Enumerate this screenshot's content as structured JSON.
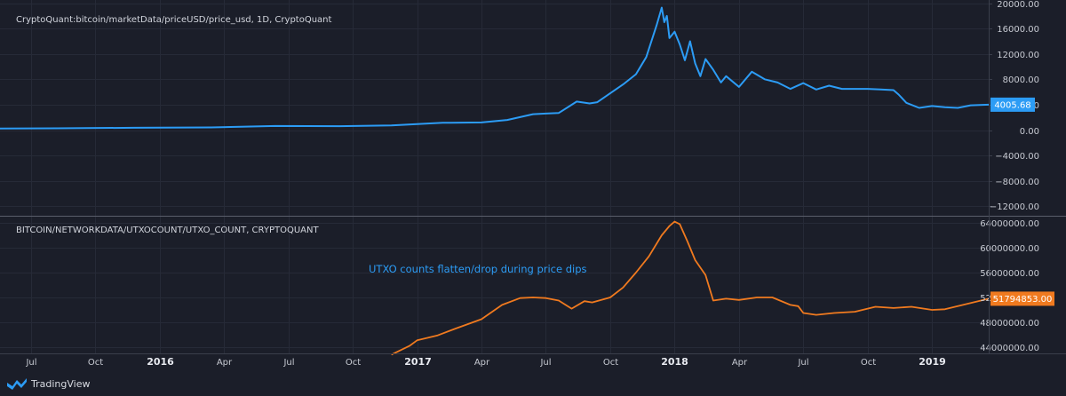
{
  "colors": {
    "background": "#1b1e29",
    "grid": "#262a37",
    "price_line": "#2c9cf5",
    "utxo_line": "#f07a1f",
    "separator": "#5a5e6b"
  },
  "brand": {
    "name": "TradingView",
    "icon": "tradingview-logo-icon"
  },
  "x_axis": {
    "ticks": [
      {
        "label": "Jul",
        "t": 2015.5,
        "bold": false
      },
      {
        "label": "Oct",
        "t": 2015.75,
        "bold": false
      },
      {
        "label": "2016",
        "t": 2016.0,
        "bold": true
      },
      {
        "label": "Apr",
        "t": 2016.25,
        "bold": false
      },
      {
        "label": "Jul",
        "t": 2016.5,
        "bold": false
      },
      {
        "label": "Oct",
        "t": 2016.75,
        "bold": false
      },
      {
        "label": "2017",
        "t": 2017.0,
        "bold": true
      },
      {
        "label": "Apr",
        "t": 2017.25,
        "bold": false
      },
      {
        "label": "Jul",
        "t": 2017.5,
        "bold": false
      },
      {
        "label": "Oct",
        "t": 2017.75,
        "bold": false
      },
      {
        "label": "2018",
        "t": 2018.0,
        "bold": true
      },
      {
        "label": "Apr",
        "t": 2018.25,
        "bold": false
      },
      {
        "label": "Jul",
        "t": 2018.5,
        "bold": false
      },
      {
        "label": "Oct",
        "t": 2018.75,
        "bold": false
      },
      {
        "label": "2019",
        "t": 2019.0,
        "bold": true
      }
    ],
    "range": [
      2015.38,
      2019.22
    ]
  },
  "chart_data": [
    {
      "type": "line",
      "title": "CryptoQuant:bitcoin/marketData/priceUSD/price_usd, 1D, CryptoQuant",
      "xlabel": "",
      "ylabel": "",
      "ylim": [
        -13500,
        20500
      ],
      "yticks": [
        "20000.00",
        "16000.00",
        "12000.00",
        "8000.00",
        "4000.00",
        "0.00",
        "−4000.00",
        "−8000.00",
        "−12000.00"
      ],
      "ytick_values": [
        20000,
        16000,
        12000,
        8000,
        4000,
        0,
        -4000,
        -8000,
        -12000
      ],
      "last_value_label": "4005.68",
      "last_value": 4005.68,
      "series": [
        {
          "name": "price_usd",
          "x": [
            2015.38,
            2015.6,
            2015.9,
            2016.2,
            2016.45,
            2016.7,
            2016.9,
            2017.0,
            2017.1,
            2017.25,
            2017.35,
            2017.45,
            2017.5,
            2017.55,
            2017.62,
            2017.67,
            2017.7,
            2017.75,
            2017.8,
            2017.85,
            2017.89,
            2017.93,
            2017.95,
            2017.96,
            2017.97,
            2017.98,
            2018.0,
            2018.02,
            2018.04,
            2018.06,
            2018.08,
            2018.1,
            2018.12,
            2018.15,
            2018.18,
            2018.2,
            2018.25,
            2018.3,
            2018.35,
            2018.4,
            2018.45,
            2018.5,
            2018.55,
            2018.6,
            2018.65,
            2018.7,
            2018.75,
            2018.8,
            2018.85,
            2018.87,
            2018.9,
            2018.95,
            2019.0,
            2019.05,
            2019.1,
            2019.15,
            2019.22
          ],
          "values": [
            240,
            280,
            360,
            420,
            650,
            620,
            750,
            960,
            1150,
            1200,
            1600,
            2500,
            2600,
            2700,
            4500,
            4200,
            4400,
            5800,
            7200,
            8800,
            11500,
            16500,
            19300,
            17000,
            18000,
            14500,
            15500,
            13500,
            11000,
            14000,
            10500,
            8500,
            11200,
            9500,
            7500,
            8500,
            6800,
            9200,
            8000,
            7500,
            6500,
            7400,
            6400,
            7000,
            6500,
            6500,
            6500,
            6400,
            6300,
            5600,
            4300,
            3500,
            3800,
            3600,
            3500,
            3900,
            4005.68
          ]
        }
      ]
    },
    {
      "type": "line",
      "title": "BITCOIN/NETWORKDATA/UTXOCOUNT/UTXO_COUNT, CRYPTOQUANT",
      "xlabel": "",
      "ylabel": "",
      "ylim": [
        43000000,
        65000000
      ],
      "yticks": [
        "64000000.00",
        "60000000.00",
        "56000000.00",
        "52000000.00",
        "48000000.00",
        "44000000.00"
      ],
      "ytick_values": [
        64000000,
        60000000,
        56000000,
        52000000,
        48000000,
        44000000
      ],
      "last_value_label": "51794853.00",
      "last_value": 51794853,
      "annotation": "UTXO counts flatten/drop during price dips",
      "series": [
        {
          "name": "UTXO_COUNT",
          "x": [
            2016.9,
            2016.97,
            2017.0,
            2017.08,
            2017.15,
            2017.25,
            2017.33,
            2017.4,
            2017.45,
            2017.5,
            2017.55,
            2017.6,
            2017.65,
            2017.68,
            2017.75,
            2017.8,
            2017.85,
            2017.9,
            2017.95,
            2017.98,
            2018.0,
            2018.02,
            2018.05,
            2018.08,
            2018.12,
            2018.15,
            2018.2,
            2018.25,
            2018.32,
            2018.38,
            2018.45,
            2018.48,
            2018.5,
            2018.55,
            2018.62,
            2018.7,
            2018.78,
            2018.85,
            2018.92,
            2019.0,
            2019.05,
            2019.12,
            2019.22
          ],
          "values": [
            42800000,
            44200000,
            45100000,
            45900000,
            47000000,
            48500000,
            50800000,
            51900000,
            52000000,
            51900000,
            51500000,
            50200000,
            51400000,
            51200000,
            52000000,
            53600000,
            56000000,
            58600000,
            62000000,
            63500000,
            64200000,
            63800000,
            61000000,
            58000000,
            55600000,
            51500000,
            51800000,
            51600000,
            52000000,
            52000000,
            50800000,
            50600000,
            49500000,
            49200000,
            49500000,
            49700000,
            50500000,
            50300000,
            50500000,
            50000000,
            50100000,
            50800000,
            51794853
          ]
        }
      ]
    }
  ]
}
